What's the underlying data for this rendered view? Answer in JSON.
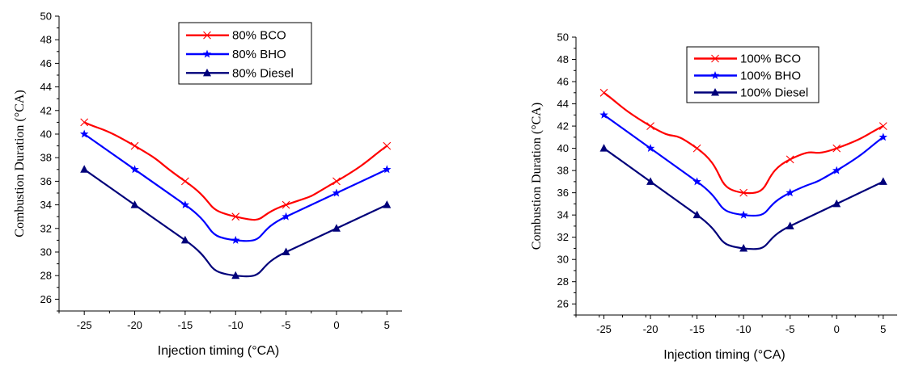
{
  "chart_data": [
    {
      "type": "line",
      "xlabel": "Injection timing (°CA)",
      "ylabel": "Combustion Duration (°CA)",
      "x": [
        -25,
        -20,
        -15,
        -10,
        -5,
        0,
        5
      ],
      "xticks": [
        -25,
        -20,
        -15,
        -10,
        -5,
        0,
        5
      ],
      "xlim": [
        -27.5,
        6.5
      ],
      "ylim": [
        25,
        50
      ],
      "yticks": [
        26,
        28,
        30,
        32,
        34,
        36,
        38,
        40,
        42,
        44,
        46,
        48,
        50
      ],
      "legend_position": "top-center",
      "series": [
        {
          "name": "80% BCO",
          "color": "#ff0000",
          "marker": "x",
          "values": [
            41,
            39,
            36,
            33,
            34,
            36,
            39
          ]
        },
        {
          "name": "80% BHO",
          "color": "#0000ff",
          "marker": "star",
          "values": [
            40,
            37,
            34,
            31,
            33,
            35,
            37
          ]
        },
        {
          "name": "80% Diesel",
          "color": "#00007a",
          "marker": "triangle",
          "values": [
            37,
            34,
            31,
            28,
            30,
            32,
            34
          ]
        }
      ]
    },
    {
      "type": "line",
      "xlabel": "Injection timing (°CA)",
      "ylabel": "Combustion Duration (°CA)",
      "x": [
        -25,
        -20,
        -15,
        -10,
        -5,
        0,
        5
      ],
      "xticks": [
        -25,
        -20,
        -15,
        -10,
        -5,
        0,
        5
      ],
      "xlim": [
        -28,
        6.5
      ],
      "ylim": [
        25,
        50
      ],
      "yticks": [
        26,
        28,
        30,
        32,
        34,
        36,
        38,
        40,
        42,
        44,
        46,
        48,
        50
      ],
      "legend_position": "top-center",
      "series": [
        {
          "name": "100% BCO",
          "color": "#ff0000",
          "marker": "x",
          "values": [
            45,
            42,
            40,
            36,
            39,
            40,
            42
          ]
        },
        {
          "name": "100% BHO",
          "color": "#0000ff",
          "marker": "star",
          "values": [
            43,
            40,
            37,
            34,
            36,
            38,
            41
          ]
        },
        {
          "name": "100% Diesel",
          "color": "#00007a",
          "marker": "triangle",
          "values": [
            40,
            37,
            34,
            31,
            33,
            35,
            37
          ]
        }
      ]
    }
  ]
}
